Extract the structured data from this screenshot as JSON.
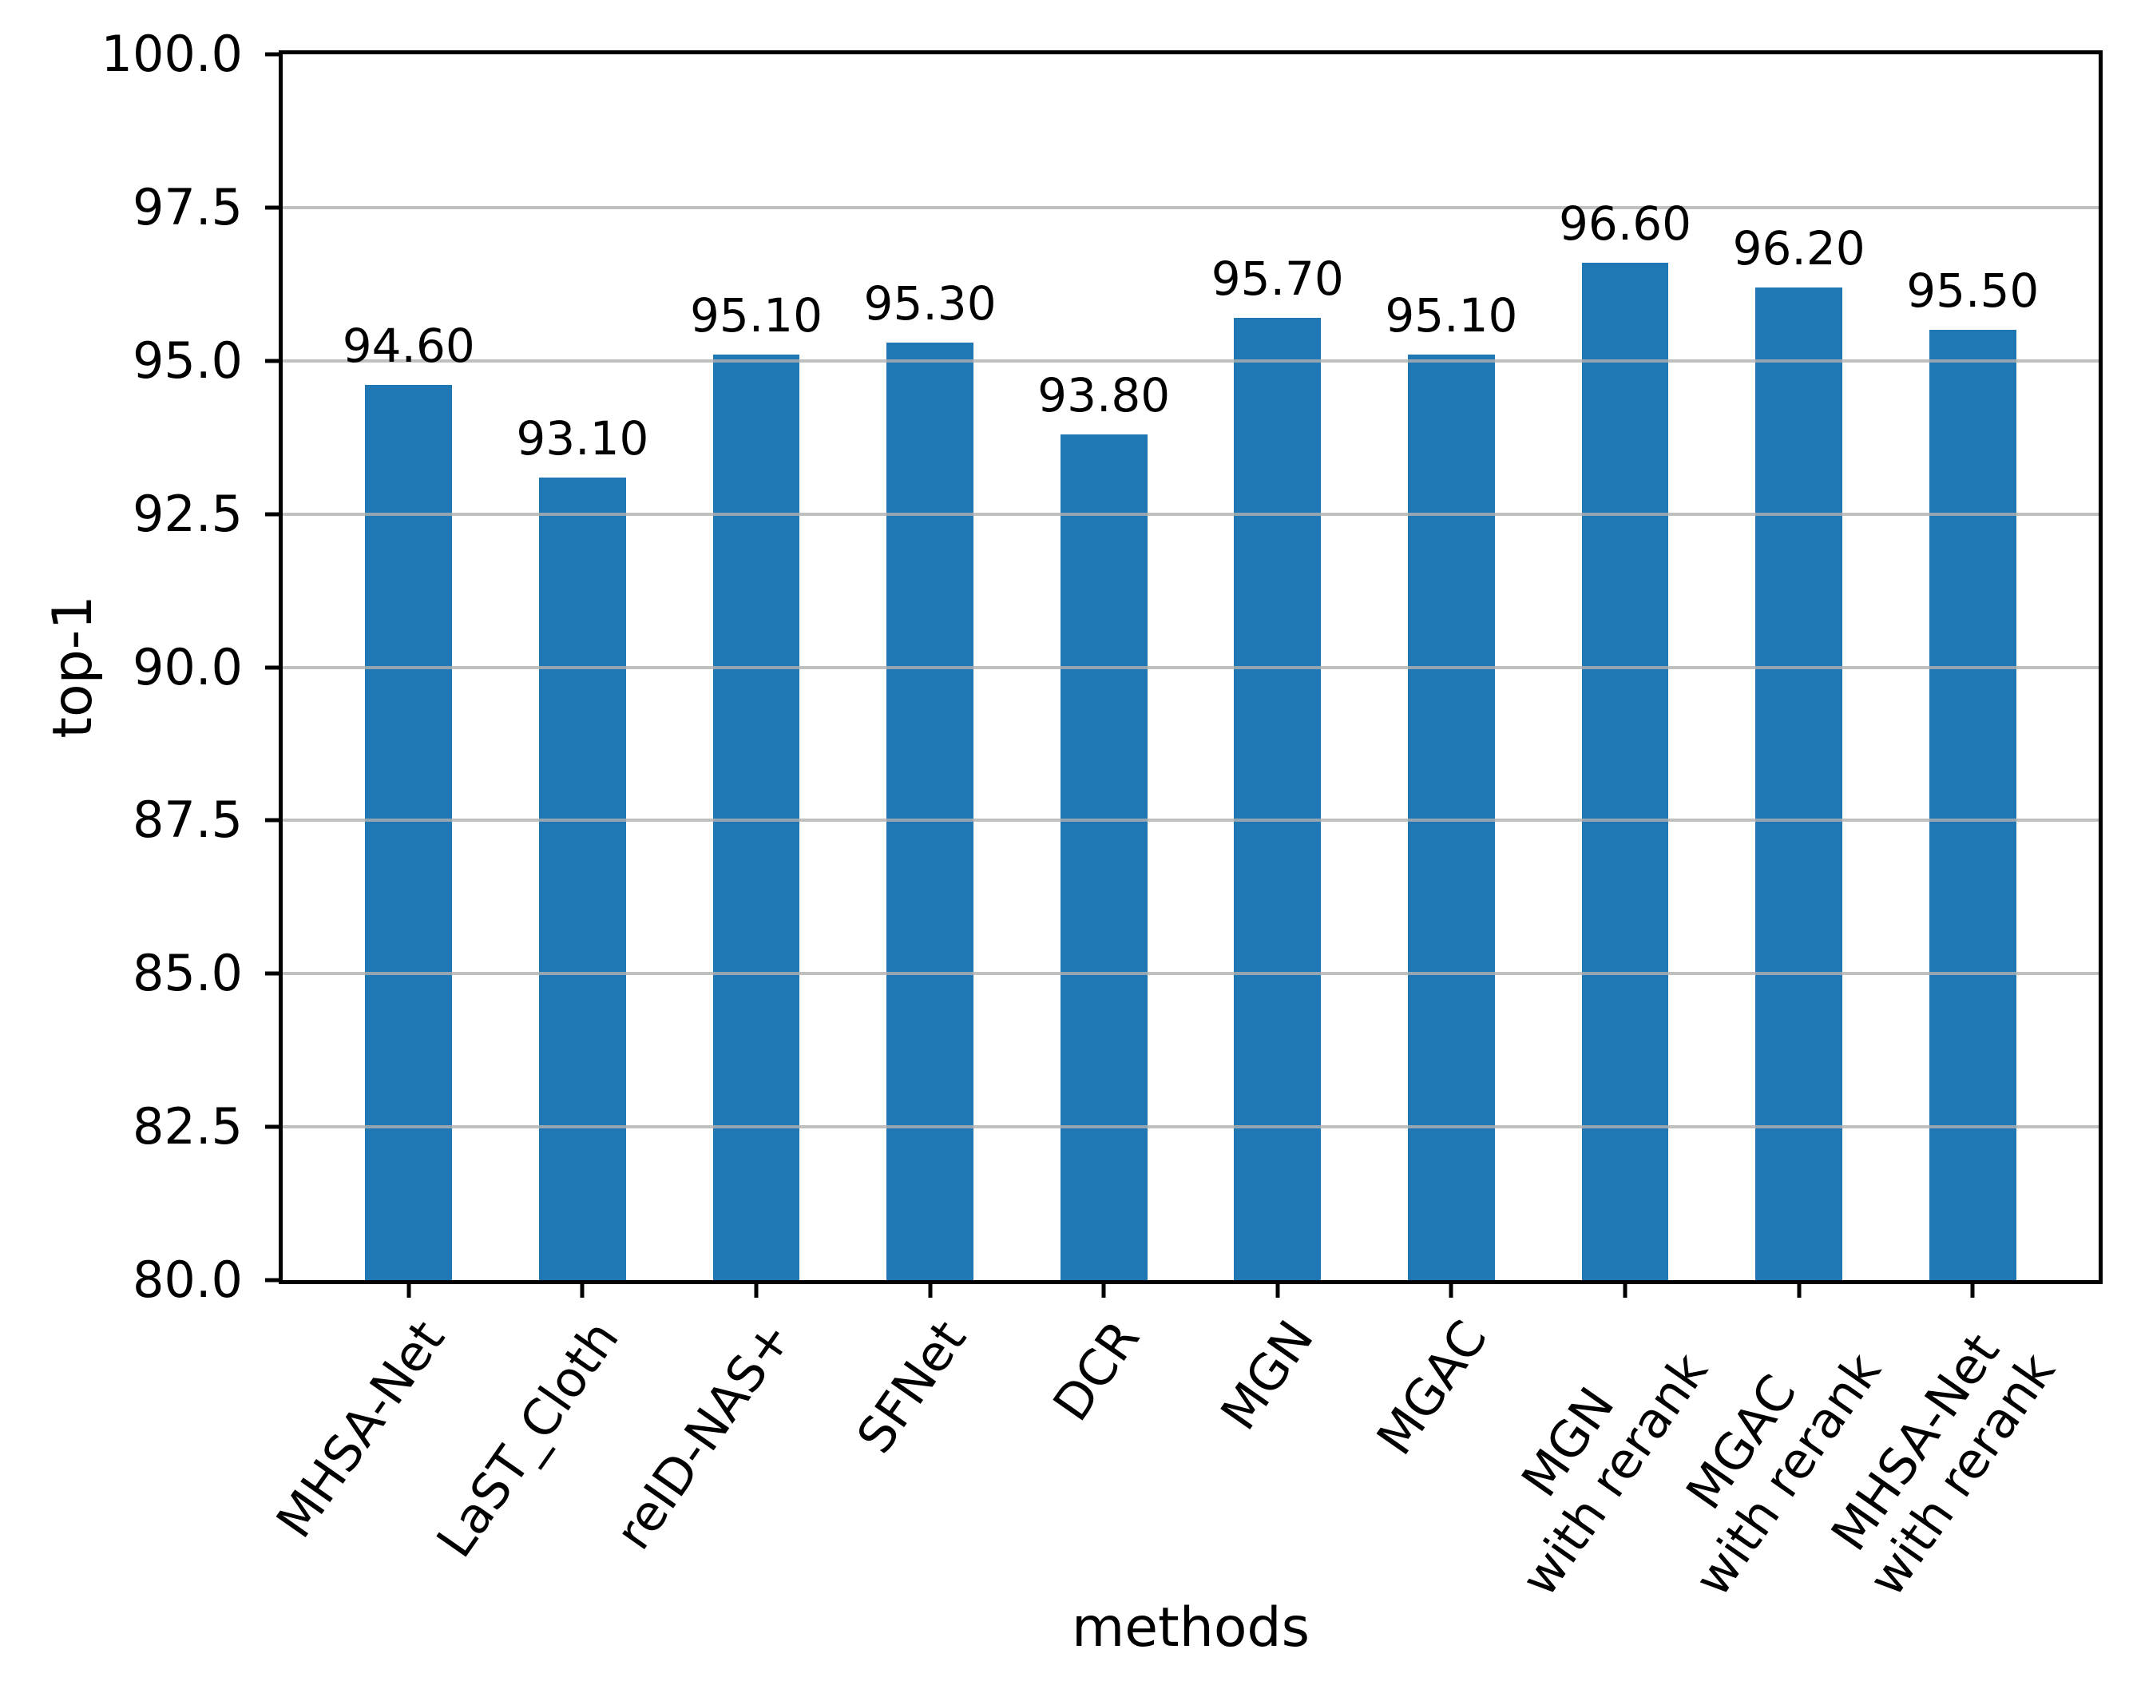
{
  "chart_data": {
    "type": "bar",
    "title": "",
    "xlabel": "methods",
    "ylabel": "top-1",
    "categories": [
      "MHSA-Net",
      "LaST_Cloth",
      "reID-NAS+",
      "SFNet",
      "DCR",
      "MGN",
      "MGAC",
      "MGN\nwith rerank",
      "MGAC\nwith rerank",
      "MHSA-Net\nwith rerank"
    ],
    "values": [
      94.6,
      93.1,
      95.1,
      95.3,
      93.8,
      95.7,
      95.1,
      96.6,
      96.2,
      95.5
    ],
    "value_labels": [
      "94.60",
      "93.10",
      "95.10",
      "95.30",
      "93.80",
      "95.70",
      "95.10",
      "96.60",
      "96.20",
      "95.50"
    ],
    "ylim": [
      80.0,
      100.0
    ],
    "yticks": [
      80.0,
      82.5,
      85.0,
      87.5,
      90.0,
      92.5,
      95.0,
      97.5,
      100.0
    ],
    "ytick_labels": [
      "80.0",
      "82.5",
      "85.0",
      "87.5",
      "90.0",
      "92.5",
      "95.0",
      "97.5",
      "100.0"
    ],
    "grid": "horizontal",
    "grid_over_bars": true,
    "legend": "none",
    "bar_color": "#1f77b4",
    "grid_color": "#b0b0b0",
    "spine_color": "#000000",
    "bar_width_fraction": 0.5,
    "x_edge_margin": 0.725,
    "xtick_rotation_deg": 55
  }
}
